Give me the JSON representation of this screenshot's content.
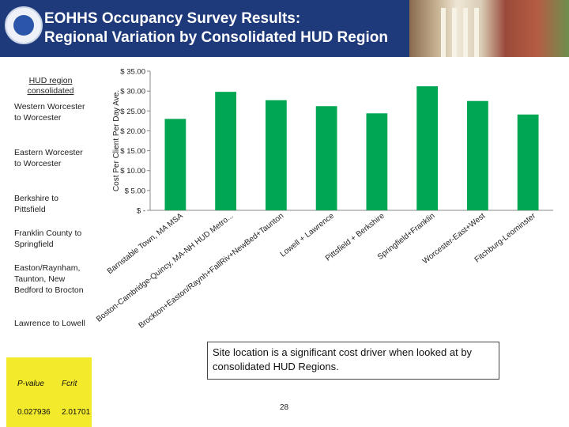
{
  "header": {
    "title_line1": "EOHHS Occupancy Survey Results:",
    "title_line2": "Regional Variation by Consolidated HUD Region",
    "seal_icon": "massachusetts-seal-icon",
    "photo_icon": "state-house-photo"
  },
  "legend": {
    "heading": "HUD region consolidated",
    "items": [
      "Western Worcester to Worcester",
      "Eastern Worcester to Worcester",
      "Berkshire to Pittsfield",
      "Franklin County to Springfield",
      "Easton/Raynham, Taunton, New Bedford to Brocton",
      "Lawrence to Lowell"
    ]
  },
  "stats": {
    "p_label": "P-value",
    "f_label": "Fcrit",
    "p_value": "0.027936",
    "f_value": "2.01701",
    "fill": "#f2ea2a"
  },
  "note": "Site location is a significant cost driver when looked at by consolidated HUD Regions.",
  "page_number": "28",
  "chart_data": {
    "type": "bar",
    "ylabel": "Cost Per Client Per Day Ave.",
    "ylim": [
      0,
      35
    ],
    "yticks": [
      0,
      5,
      10,
      15,
      20,
      25,
      30,
      35
    ],
    "ytick_labels": [
      "$ -",
      "$ 5.00",
      "$ 10.00",
      "$ 15.00",
      "$ 20.00",
      "$ 25.00",
      "$ 30.00",
      "$ 35.00"
    ],
    "categories": [
      "Barnstable Town, MA MSA",
      "Boston-Cambridge-Quincy, MA-NH HUD Metro...",
      "Brockton+Easton/Raynh+FallRiv+NewBed+Taunton",
      "Lowell + Lawrence",
      "Pittsfield + Berkshire",
      "Springfield+Franklin",
      "Worcester-East+West",
      "Fitchburg-Leominster"
    ],
    "values": [
      23,
      29.8,
      27.7,
      26.2,
      24.4,
      31.2,
      27.5,
      24.1
    ],
    "bar_color": "#00a651",
    "grid": false
  }
}
